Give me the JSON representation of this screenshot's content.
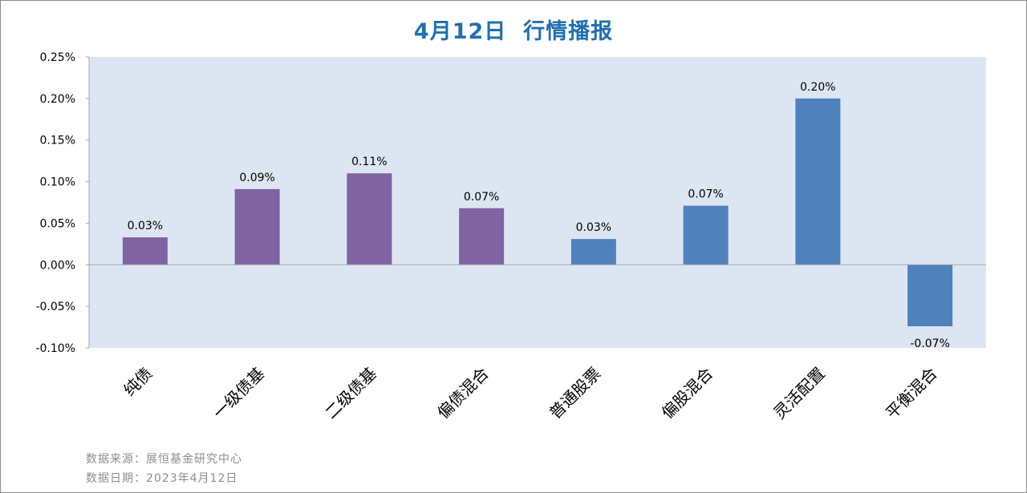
{
  "chart_data": {
    "type": "bar",
    "title": "4月12日  行情播报",
    "categories": [
      "纯债",
      "一级债基",
      "二级债基",
      "偏债混合",
      "普通股票",
      "偏股混合",
      "灵活配置",
      "平衡混合"
    ],
    "values": [
      0.033,
      0.091,
      0.11,
      0.068,
      0.031,
      0.071,
      0.2,
      -0.074
    ],
    "value_labels": [
      "0.03%",
      "0.09%",
      "0.11%",
      "0.07%",
      "0.03%",
      "0.07%",
      "0.20%",
      "-0.07%"
    ],
    "bar_colors": [
      "#8064a2",
      "#8064a2",
      "#8064a2",
      "#8064a2",
      "#4f81bd",
      "#4f81bd",
      "#4f81bd",
      "#4f81bd"
    ],
    "ylim": [
      -0.1,
      0.25
    ],
    "yticks": [
      0.25,
      0.2,
      0.15,
      0.1,
      0.05,
      0.0,
      -0.05,
      -0.1
    ],
    "ytick_labels": [
      "0.25%",
      "0.20%",
      "0.15%",
      "0.10%",
      "0.05%",
      "0.00%",
      "-0.05%",
      "-0.10%"
    ],
    "xlabel": "",
    "ylabel": "",
    "grid": false,
    "legend": "none",
    "plot_background": "#dce6f2",
    "title_color": "#1f6fb2"
  },
  "footer": {
    "source": "数据来源：展恒基金研究中心",
    "date": "数据日期：2023年4月12日"
  }
}
